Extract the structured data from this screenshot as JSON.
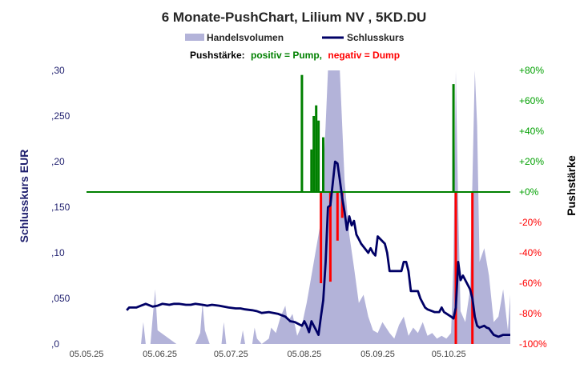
{
  "chart_data": {
    "type": "line",
    "title": "6 Monate-PushChart,  Lilium NV , 5KD.DU",
    "legend": {
      "volume_label": "Handelsvolumen",
      "close_label": "Schlusskurs",
      "push_prefix": "Pushstärke:",
      "push_positive": "positiv = Pump,",
      "push_negative": "negativ = Dump"
    },
    "ylabel_left": "Schlusskurs EUR",
    "ylabel_right": "Pushstärke",
    "ylim_left": [
      0,
      0.3
    ],
    "ylim_right": [
      -100,
      80
    ],
    "yticks_left": [
      ",0",
      ",050",
      ",10",
      ",150",
      ",20",
      ",250",
      ",30"
    ],
    "yticks_right": [
      "+80%",
      "+60%",
      "+40%",
      "+20%",
      "+0%",
      "-20%",
      "-40%",
      "-60%",
      "-80%",
      "-100%"
    ],
    "x_range": [
      "2025-05-05",
      "2025-10-31"
    ],
    "xticks": [
      "05.05.25",
      "05.06.25",
      "05.07.25",
      "05.08.25",
      "05.09.25",
      "05.10.25"
    ],
    "colors": {
      "close": "#000066",
      "volume": "#b3b3d9",
      "pump": "#008000",
      "dump": "#ff0000",
      "zero_line": "#008000",
      "push_label": "#000000",
      "push_positive": "#008000",
      "push_negative": "#ff0000"
    },
    "series": [
      {
        "name": "Schlusskurs",
        "points": [
          [
            "2025-05-22",
            0.037
          ],
          [
            "2025-05-23",
            0.04
          ],
          [
            "2025-05-26",
            0.04
          ],
          [
            "2025-05-28",
            0.042
          ],
          [
            "2025-05-30",
            0.044
          ],
          [
            "2025-06-02",
            0.041
          ],
          [
            "2025-06-04",
            0.042
          ],
          [
            "2025-06-06",
            0.044
          ],
          [
            "2025-06-09",
            0.043
          ],
          [
            "2025-06-11",
            0.044
          ],
          [
            "2025-06-13",
            0.044
          ],
          [
            "2025-06-16",
            0.043
          ],
          [
            "2025-06-18",
            0.043
          ],
          [
            "2025-06-20",
            0.044
          ],
          [
            "2025-06-23",
            0.043
          ],
          [
            "2025-06-25",
            0.042
          ],
          [
            "2025-06-27",
            0.043
          ],
          [
            "2025-06-30",
            0.042
          ],
          [
            "2025-07-02",
            0.041
          ],
          [
            "2025-07-04",
            0.04
          ],
          [
            "2025-07-07",
            0.039
          ],
          [
            "2025-07-09",
            0.039
          ],
          [
            "2025-07-11",
            0.038
          ],
          [
            "2025-07-14",
            0.037
          ],
          [
            "2025-07-16",
            0.036
          ],
          [
            "2025-07-18",
            0.034
          ],
          [
            "2025-07-21",
            0.035
          ],
          [
            "2025-07-23",
            0.034
          ],
          [
            "2025-07-25",
            0.033
          ],
          [
            "2025-07-28",
            0.03
          ],
          [
            "2025-07-30",
            0.025
          ],
          [
            "2025-08-01",
            0.024
          ],
          [
            "2025-08-04",
            0.02
          ],
          [
            "2025-08-05",
            0.025
          ],
          [
            "2025-08-06",
            0.02
          ],
          [
            "2025-08-07",
            0.013
          ],
          [
            "2025-08-08",
            0.025
          ],
          [
            "2025-08-09",
            0.02
          ],
          [
            "2025-08-10",
            0.015
          ],
          [
            "2025-08-11",
            0.01
          ],
          [
            "2025-08-12",
            0.03
          ],
          [
            "2025-08-13",
            0.048
          ],
          [
            "2025-08-14",
            0.09
          ],
          [
            "2025-08-15",
            0.15
          ],
          [
            "2025-08-16",
            0.152
          ],
          [
            "2025-08-18",
            0.2
          ],
          [
            "2025-08-19",
            0.198
          ],
          [
            "2025-08-20",
            0.18
          ],
          [
            "2025-08-21",
            0.16
          ],
          [
            "2025-08-22",
            0.145
          ],
          [
            "2025-08-23",
            0.125
          ],
          [
            "2025-08-24",
            0.14
          ],
          [
            "2025-08-25",
            0.13
          ],
          [
            "2025-08-26",
            0.135
          ],
          [
            "2025-08-27",
            0.12
          ],
          [
            "2025-08-28",
            0.115
          ],
          [
            "2025-08-29",
            0.11
          ],
          [
            "2025-09-01",
            0.1
          ],
          [
            "2025-09-02",
            0.105
          ],
          [
            "2025-09-03",
            0.1
          ],
          [
            "2025-09-04",
            0.097
          ],
          [
            "2025-09-05",
            0.118
          ],
          [
            "2025-09-08",
            0.11
          ],
          [
            "2025-09-09",
            0.1
          ],
          [
            "2025-09-10",
            0.08
          ],
          [
            "2025-09-15",
            0.08
          ],
          [
            "2025-09-16",
            0.09
          ],
          [
            "2025-09-17",
            0.09
          ],
          [
            "2025-09-18",
            0.08
          ],
          [
            "2025-09-19",
            0.058
          ],
          [
            "2025-09-22",
            0.058
          ],
          [
            "2025-09-23",
            0.05
          ],
          [
            "2025-09-25",
            0.04
          ],
          [
            "2025-09-26",
            0.038
          ],
          [
            "2025-09-29",
            0.035
          ],
          [
            "2025-10-01",
            0.035
          ],
          [
            "2025-10-02",
            0.04
          ],
          [
            "2025-10-03",
            0.035
          ],
          [
            "2025-10-06",
            0.03
          ],
          [
            "2025-10-07",
            0.028
          ],
          [
            "2025-10-08",
            0.04
          ],
          [
            "2025-10-09",
            0.09
          ],
          [
            "2025-10-10",
            0.07
          ],
          [
            "2025-10-11",
            0.075
          ],
          [
            "2025-10-13",
            0.065
          ],
          [
            "2025-10-14",
            0.06
          ],
          [
            "2025-10-15",
            0.05
          ],
          [
            "2025-10-16",
            0.03
          ],
          [
            "2025-10-17",
            0.02
          ],
          [
            "2025-10-18",
            0.018
          ],
          [
            "2025-10-20",
            0.02
          ],
          [
            "2025-10-21",
            0.018
          ],
          [
            "2025-10-22",
            0.017
          ],
          [
            "2025-10-24",
            0.01
          ],
          [
            "2025-10-26",
            0.008
          ],
          [
            "2025-10-28",
            0.01
          ],
          [
            "2025-10-31",
            0.01
          ]
        ]
      },
      {
        "name": "Handelsvolumen",
        "relative_scale": "0–1 of chart height",
        "points": [
          [
            "2025-05-22",
            0.0
          ],
          [
            "2025-05-28",
            0.0
          ],
          [
            "2025-05-29",
            0.08
          ],
          [
            "2025-05-30",
            0.0
          ],
          [
            "2025-06-01",
            0.0
          ],
          [
            "2025-06-02",
            0.1
          ],
          [
            "2025-06-03",
            0.2
          ],
          [
            "2025-06-04",
            0.05
          ],
          [
            "2025-06-12",
            0.0
          ],
          [
            "2025-06-15",
            0.0
          ],
          [
            "2025-06-20",
            0.0
          ],
          [
            "2025-06-22",
            0.04
          ],
          [
            "2025-06-23",
            0.15
          ],
          [
            "2025-06-24",
            0.05
          ],
          [
            "2025-06-26",
            0.0
          ],
          [
            "2025-07-01",
            0.0
          ],
          [
            "2025-07-02",
            0.08
          ],
          [
            "2025-07-03",
            0.0
          ],
          [
            "2025-07-09",
            0.0
          ],
          [
            "2025-07-10",
            0.05
          ],
          [
            "2025-07-11",
            0.0
          ],
          [
            "2025-07-14",
            0.0
          ],
          [
            "2025-07-15",
            0.06
          ],
          [
            "2025-07-16",
            0.02
          ],
          [
            "2025-07-18",
            0.0
          ],
          [
            "2025-07-21",
            0.02
          ],
          [
            "2025-07-22",
            0.06
          ],
          [
            "2025-07-24",
            0.04
          ],
          [
            "2025-07-26",
            0.1
          ],
          [
            "2025-07-28",
            0.14
          ],
          [
            "2025-07-29",
            0.08
          ],
          [
            "2025-07-31",
            0.11
          ],
          [
            "2025-08-02",
            0.03
          ],
          [
            "2025-08-04",
            0.07
          ],
          [
            "2025-08-06",
            0.15
          ],
          [
            "2025-08-08",
            0.25
          ],
          [
            "2025-08-10",
            0.35
          ],
          [
            "2025-08-12",
            0.45
          ],
          [
            "2025-08-14",
            0.8
          ],
          [
            "2025-08-15",
            1.0
          ],
          [
            "2025-08-20",
            1.0
          ],
          [
            "2025-08-22",
            0.6
          ],
          [
            "2025-08-24",
            0.4
          ],
          [
            "2025-08-26",
            0.28
          ],
          [
            "2025-08-28",
            0.15
          ],
          [
            "2025-08-30",
            0.18
          ],
          [
            "2025-09-01",
            0.1
          ],
          [
            "2025-09-03",
            0.05
          ],
          [
            "2025-09-05",
            0.04
          ],
          [
            "2025-09-07",
            0.08
          ],
          [
            "2025-09-10",
            0.04
          ],
          [
            "2025-09-12",
            0.02
          ],
          [
            "2025-09-14",
            0.07
          ],
          [
            "2025-09-16",
            0.1
          ],
          [
            "2025-09-18",
            0.03
          ],
          [
            "2025-09-20",
            0.06
          ],
          [
            "2025-09-22",
            0.04
          ],
          [
            "2025-09-24",
            0.08
          ],
          [
            "2025-09-26",
            0.03
          ],
          [
            "2025-09-28",
            0.04
          ],
          [
            "2025-09-30",
            0.02
          ],
          [
            "2025-10-02",
            0.03
          ],
          [
            "2025-10-04",
            0.02
          ],
          [
            "2025-10-06",
            0.04
          ],
          [
            "2025-10-07",
            0.3
          ],
          [
            "2025-10-08",
            1.0
          ],
          [
            "2025-10-09",
            0.5
          ],
          [
            "2025-10-10",
            0.12
          ],
          [
            "2025-10-12",
            0.08
          ],
          [
            "2025-10-14",
            0.2
          ],
          [
            "2025-10-16",
            1.0
          ],
          [
            "2025-10-17",
            0.8
          ],
          [
            "2025-10-18",
            0.3
          ],
          [
            "2025-10-20",
            0.35
          ],
          [
            "2025-10-22",
            0.25
          ],
          [
            "2025-10-24",
            0.08
          ],
          [
            "2025-10-26",
            0.1
          ],
          [
            "2025-10-28",
            0.2
          ],
          [
            "2025-10-30",
            0.05
          ],
          [
            "2025-10-31",
            0.18
          ]
        ]
      },
      {
        "name": "Pushstärke",
        "bars_percent": [
          [
            "2025-08-04",
            77
          ],
          [
            "2025-08-08",
            28
          ],
          [
            "2025-08-09",
            50
          ],
          [
            "2025-08-10",
            57
          ],
          [
            "2025-08-11",
            47
          ],
          [
            "2025-08-12",
            -60
          ],
          [
            "2025-08-13",
            36
          ],
          [
            "2025-08-16",
            -59
          ],
          [
            "2025-08-19",
            -32
          ],
          [
            "2025-08-21",
            -17
          ],
          [
            "2025-10-07",
            71
          ],
          [
            "2025-10-08",
            -100
          ],
          [
            "2025-10-15",
            -100
          ]
        ]
      }
    ]
  }
}
